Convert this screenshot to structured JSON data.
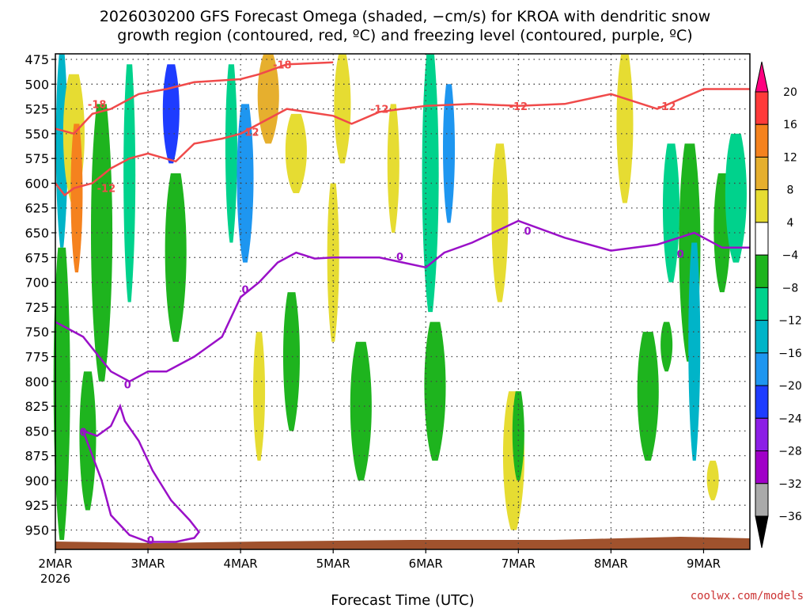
{
  "chart_data": {
    "type": "heatmap",
    "title_lines": [
      "2026030200 GFS Forecast Omega (shaded, −cm/s) for KROA with dendritic snow",
      "growth region (contoured, red, ºC) and freezing level (contoured, purple, ºC)"
    ],
    "xlabel": "Forecast Time (UTC)",
    "x_ticks": [
      "2MAR",
      "3MAR",
      "4MAR",
      "5MAR",
      "6MAR",
      "7MAR",
      "8MAR",
      "9MAR"
    ],
    "x_year": "2026",
    "xlim_days": [
      0,
      7.5
    ],
    "y_ticks": [
      475,
      500,
      525,
      550,
      575,
      600,
      625,
      650,
      675,
      700,
      725,
      750,
      775,
      800,
      825,
      850,
      875,
      900,
      925,
      950
    ],
    "ylim": [
      470,
      962
    ],
    "y_reversed": true,
    "grid": true,
    "colorbar": {
      "labels": [
        "20",
        "16",
        "12",
        "8",
        "4",
        "−4",
        "−8",
        "−12",
        "−16",
        "−20",
        "−24",
        "−28",
        "−32",
        "−36"
      ],
      "colors": [
        "#ff0080",
        "#ff3a3a",
        "#f5821e",
        "#e6af2e",
        "#e6dc32",
        "#ffffff",
        "#1eb41e",
        "#00d28c",
        "#00b4c8",
        "#1e96f0",
        "#1e3cff",
        "#8c1ee6",
        "#a000c8",
        "#aaaaaa",
        "#000000"
      ]
    },
    "contour_labels": {
      "red": [
        "-18",
        "-18",
        "-12",
        "-12",
        "-12",
        "-12",
        "-12"
      ],
      "purple": [
        "0",
        "0",
        "0",
        "0",
        "0",
        "0",
        "0"
      ]
    },
    "freezing_level_hpa": {
      "x": [
        0,
        0.1,
        0.3,
        0.6,
        0.8,
        1.0,
        1.2,
        1.5,
        1.8,
        2.0,
        2.2,
        2.4,
        2.6,
        2.8,
        3.0,
        3.5,
        4.0,
        4.2,
        4.5,
        5.0,
        5.5,
        6.0,
        6.5,
        6.9,
        7.2,
        7.5
      ],
      "y": [
        740,
        745,
        755,
        790,
        800,
        790,
        790,
        775,
        755,
        715,
        700,
        680,
        670,
        676,
        675,
        675,
        685,
        670,
        660,
        638,
        655,
        668,
        662,
        650,
        665,
        665
      ]
    },
    "freezing_level_low_hpa": {
      "x": [
        0.3,
        0.45,
        0.6,
        0.7,
        0.75,
        0.9,
        1.05,
        1.25,
        1.45,
        1.55,
        1.5,
        1.3,
        1.0,
        0.8,
        0.6,
        0.5
      ],
      "y": [
        850,
        855,
        845,
        825,
        840,
        860,
        890,
        920,
        940,
        952,
        958,
        962,
        962,
        955,
        935,
        900
      ]
    },
    "dgz_minus12_hpa": {
      "x": [
        0,
        0.1,
        0.2,
        0.4,
        0.6,
        0.8,
        1.0,
        1.3,
        1.5,
        1.8,
        2.0,
        2.5,
        3.0,
        3.2,
        3.5,
        4.0,
        4.5,
        5.0,
        5.5,
        6.0,
        6.5,
        7.0,
        7.5
      ],
      "y": [
        600,
        612,
        605,
        600,
        585,
        575,
        570,
        578,
        560,
        555,
        550,
        525,
        532,
        540,
        528,
        522,
        520,
        522,
        520,
        510,
        525,
        505,
        505
      ]
    },
    "dgz_minus12_upper_hpa": {
      "x": [
        0,
        0.2,
        0.4,
        0.6,
        0.9,
        1.2,
        1.5,
        2.0,
        2.2,
        2.5,
        3.0
      ],
      "y": [
        545,
        550,
        530,
        525,
        510,
        505,
        498,
        495,
        490,
        480,
        478
      ]
    },
    "omega_bands": [
      {
        "x": 0.07,
        "p0": 470,
        "p1": 665,
        "v": -14
      },
      {
        "x": 0.07,
        "p0": 665,
        "p1": 960,
        "v": -6
      },
      {
        "x": 0.2,
        "p0": 490,
        "p1": 620,
        "v": 6
      },
      {
        "x": 0.23,
        "p0": 540,
        "p1": 690,
        "v": 14
      },
      {
        "x": 0.35,
        "p0": 790,
        "p1": 930,
        "v": -6
      },
      {
        "x": 0.5,
        "p0": 520,
        "p1": 800,
        "v": -6
      },
      {
        "x": 0.8,
        "p0": 480,
        "p1": 720,
        "v": -8
      },
      {
        "x": 1.25,
        "p0": 480,
        "p1": 580,
        "v": -22
      },
      {
        "x": 1.3,
        "p0": 590,
        "p1": 760,
        "v": -6
      },
      {
        "x": 1.9,
        "p0": 480,
        "p1": 660,
        "v": -8
      },
      {
        "x": 2.05,
        "p0": 520,
        "p1": 680,
        "v": -18
      },
      {
        "x": 2.3,
        "p0": 470,
        "p1": 560,
        "v": 10
      },
      {
        "x": 2.2,
        "p0": 750,
        "p1": 880,
        "v": 6
      },
      {
        "x": 2.55,
        "p0": 710,
        "p1": 850,
        "v": -6
      },
      {
        "x": 2.6,
        "p0": 530,
        "p1": 610,
        "v": 6
      },
      {
        "x": 3.0,
        "p0": 600,
        "p1": 760,
        "v": 6
      },
      {
        "x": 3.1,
        "p0": 470,
        "p1": 580,
        "v": 6
      },
      {
        "x": 3.3,
        "p0": 760,
        "p1": 900,
        "v": -6
      },
      {
        "x": 3.65,
        "p0": 520,
        "p1": 650,
        "v": 6
      },
      {
        "x": 4.05,
        "p0": 470,
        "p1": 730,
        "v": -8
      },
      {
        "x": 4.1,
        "p0": 740,
        "p1": 880,
        "v": -6
      },
      {
        "x": 4.25,
        "p0": 500,
        "p1": 640,
        "v": -18
      },
      {
        "x": 4.8,
        "p0": 560,
        "p1": 720,
        "v": 6
      },
      {
        "x": 4.95,
        "p0": 810,
        "p1": 950,
        "v": 6
      },
      {
        "x": 5.0,
        "p0": 810,
        "p1": 900,
        "v": -6
      },
      {
        "x": 6.15,
        "p0": 470,
        "p1": 620,
        "v": 6
      },
      {
        "x": 6.4,
        "p0": 750,
        "p1": 880,
        "v": -6
      },
      {
        "x": 6.6,
        "p0": 740,
        "p1": 790,
        "v": -6
      },
      {
        "x": 6.65,
        "p0": 560,
        "p1": 700,
        "v": -10
      },
      {
        "x": 6.85,
        "p0": 560,
        "p1": 780,
        "v": -6
      },
      {
        "x": 6.9,
        "p0": 660,
        "p1": 880,
        "v": -14
      },
      {
        "x": 7.2,
        "p0": 590,
        "p1": 710,
        "v": -6
      },
      {
        "x": 7.35,
        "p0": 550,
        "p1": 680,
        "v": -8
      },
      {
        "x": 7.1,
        "p0": 880,
        "p1": 920,
        "v": 6
      }
    ]
  },
  "credit": "coolwx.com/models"
}
